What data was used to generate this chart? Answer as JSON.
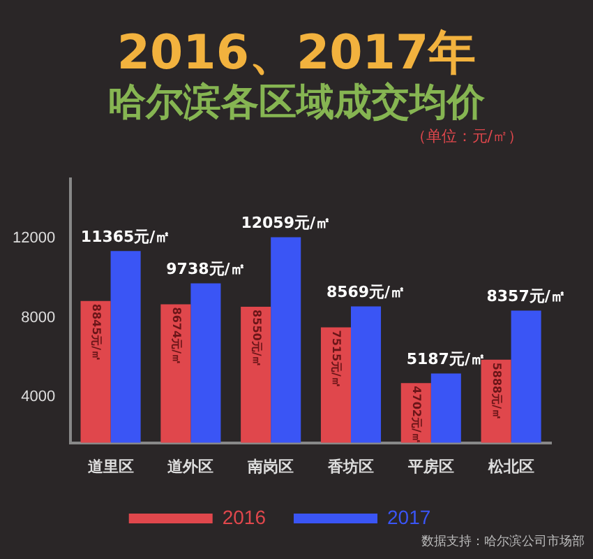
{
  "chart_data": {
    "type": "bar",
    "title": "2016、2017年",
    "subtitle": "哈尔滨各区域成交均价",
    "annotations": [
      "（单位：元/㎡）",
      "数据支持：哈尔滨公司市场部"
    ],
    "categories": [
      "道里区",
      "道外区",
      "南岗区",
      "香坊区",
      "平房区",
      "松北区"
    ],
    "series": [
      {
        "name": "2016",
        "color": "#e0474c",
        "values": [
          8845,
          8674,
          8550,
          7515,
          4702,
          5888
        ],
        "value_labels": [
          "8845元/㎡",
          "8674元/㎡",
          "8550元/㎡",
          "7515元/㎡",
          "4702元/㎡",
          "5888元/㎡"
        ]
      },
      {
        "name": "2017",
        "color": "#3a55f5",
        "values": [
          11365,
          9738,
          12059,
          8569,
          5187,
          8357
        ],
        "value_labels": [
          "11365元/㎡",
          "9738元/㎡",
          "12059元/㎡",
          "8569元/㎡",
          "5187元/㎡",
          "8357元/㎡"
        ]
      }
    ],
    "ylim": [
      1700,
      15000
    ],
    "yticks": [
      4000,
      8000,
      12000
    ],
    "grid": false,
    "legend": "bottom"
  }
}
